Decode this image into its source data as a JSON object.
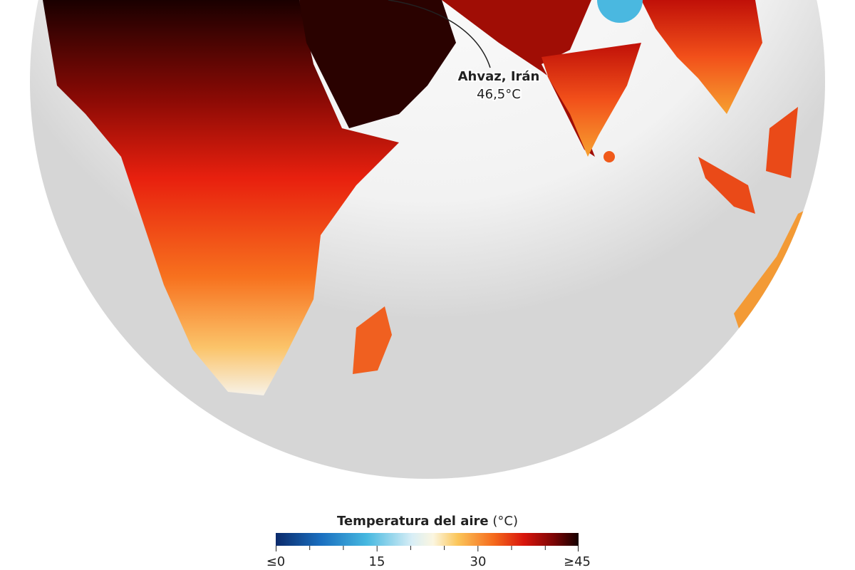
{
  "annotation": {
    "place": "Ahvaz, Irán",
    "value": "46,5°C"
  },
  "legend": {
    "title": "Temperatura del aire",
    "unit": "(°C)",
    "ticks": [
      "≤0",
      "15",
      "30",
      "≥45"
    ]
  }
}
